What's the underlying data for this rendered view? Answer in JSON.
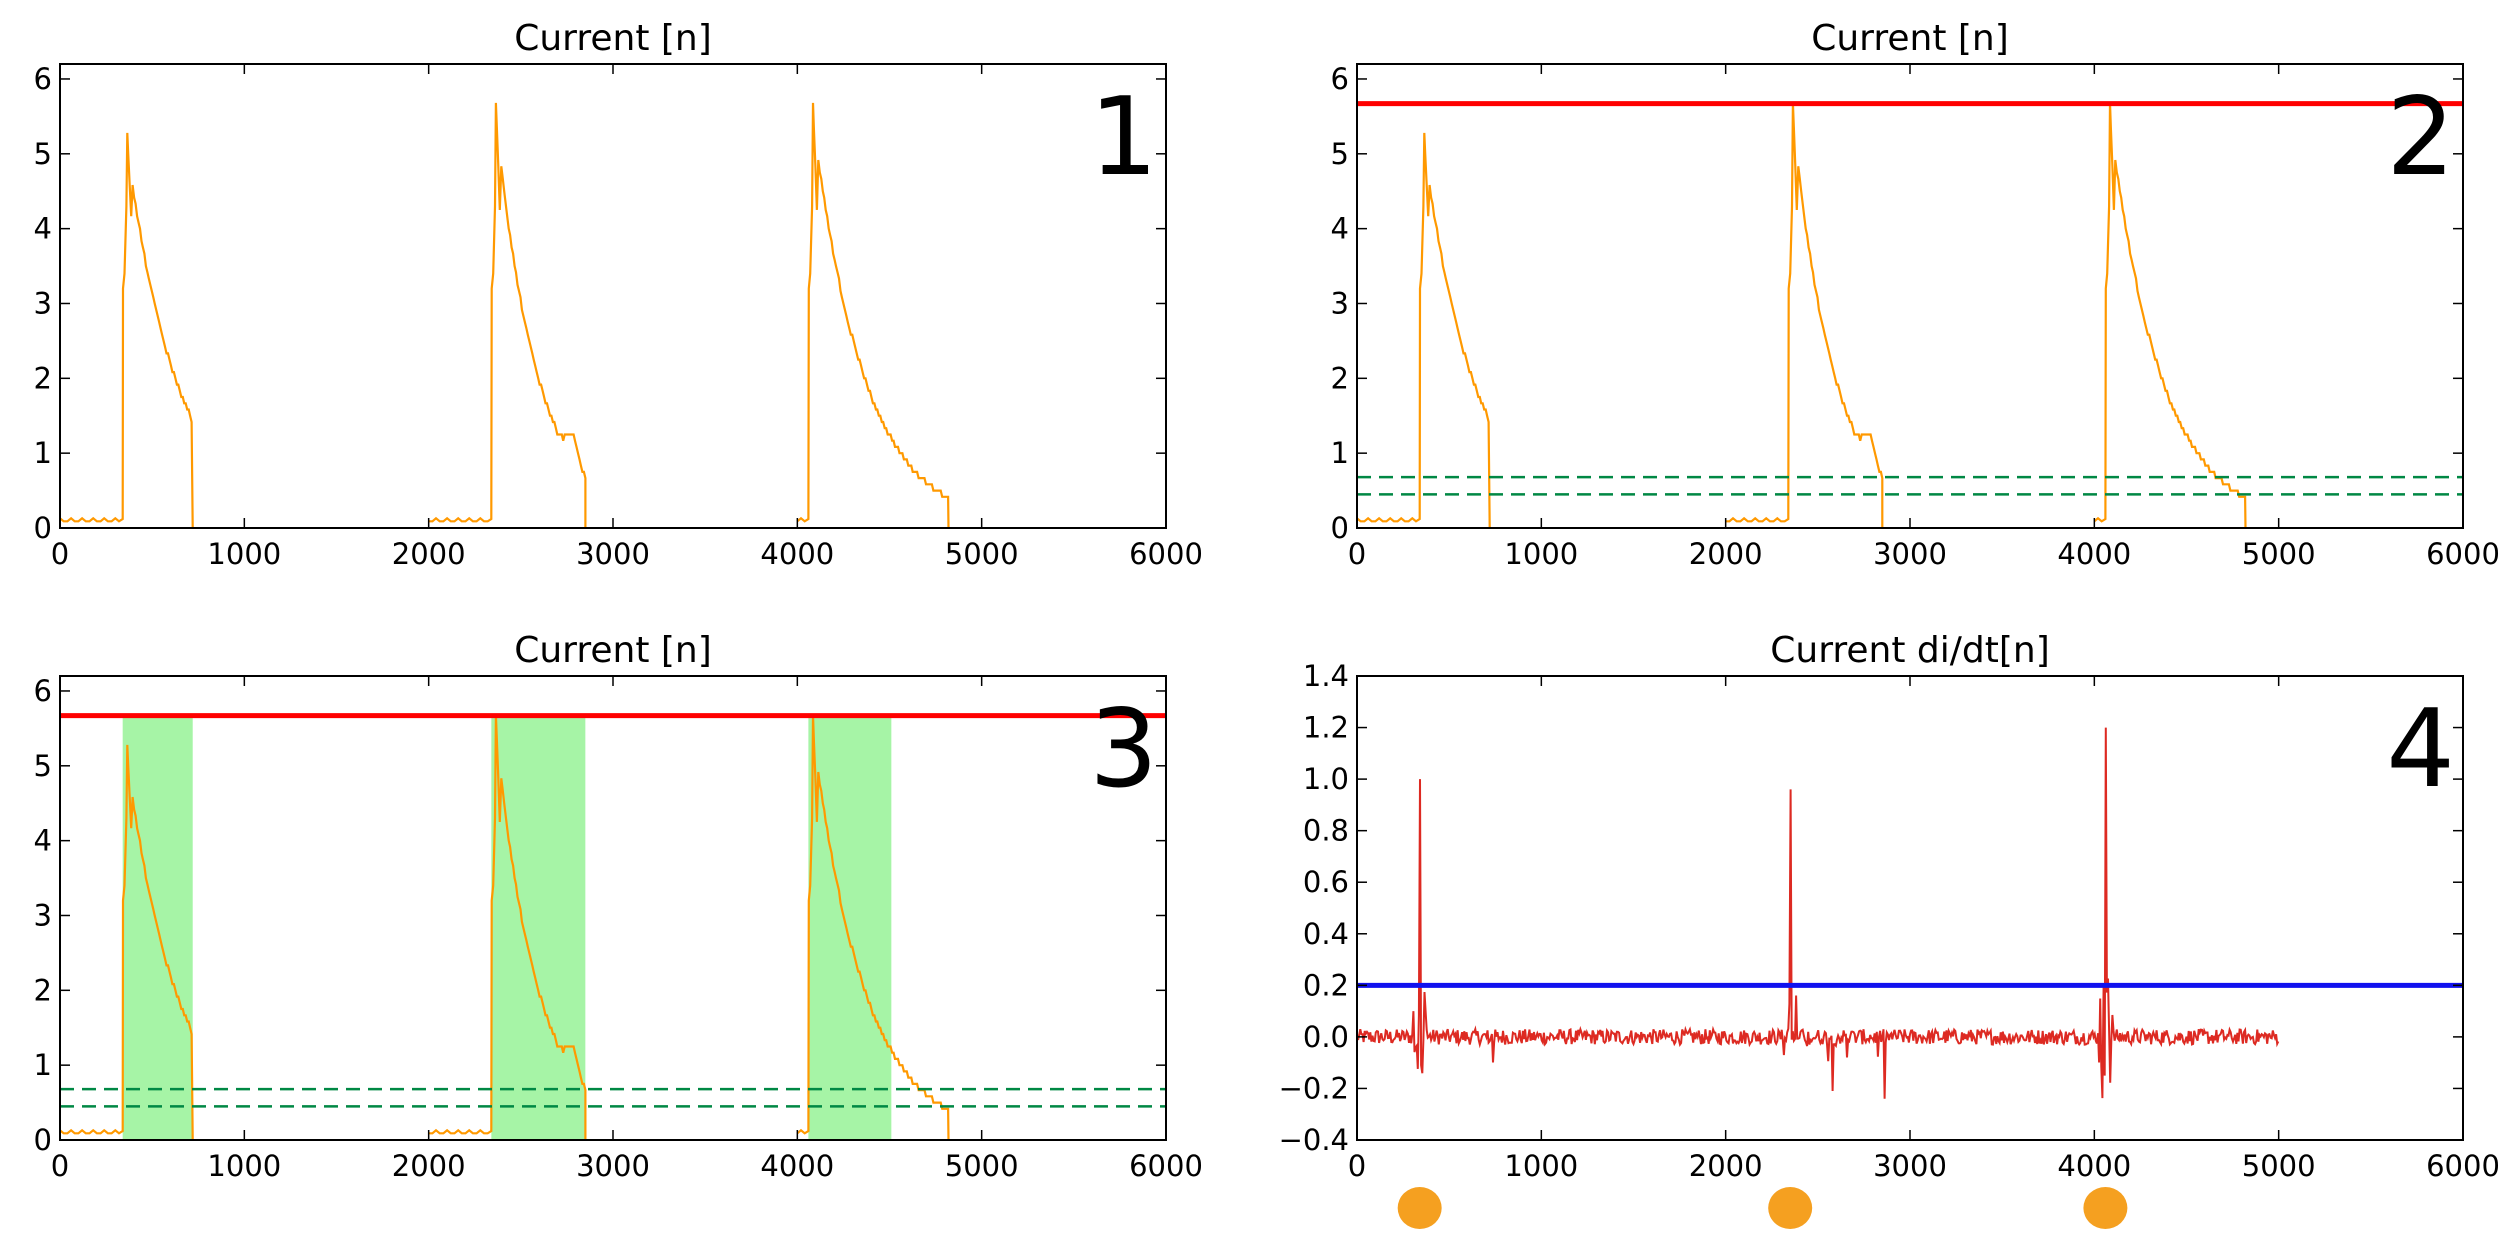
{
  "chart_data": [
    {
      "type": "line",
      "panel": "1",
      "title": "Current [n]",
      "xlim": [
        0,
        6000
      ],
      "ylim": [
        0,
        6.2
      ],
      "xticks": [
        "0",
        "1000",
        "2000",
        "3000",
        "4000",
        "5000",
        "6000"
      ],
      "yticks": [
        "0",
        "1",
        "2",
        "3",
        "4",
        "5",
        "6"
      ],
      "series": [
        {
          "name": "current",
          "color": "#ff9900"
        }
      ],
      "hlines": [],
      "dashed_hlines": [],
      "shaded_regions": []
    },
    {
      "type": "line",
      "panel": "2",
      "title": "Current [n]",
      "xlim": [
        0,
        6000
      ],
      "ylim": [
        0,
        6.2
      ],
      "xticks": [
        "0",
        "1000",
        "2000",
        "3000",
        "4000",
        "5000",
        "6000"
      ],
      "yticks": [
        "0",
        "1",
        "2",
        "3",
        "4",
        "5",
        "6"
      ],
      "series": [
        {
          "name": "current",
          "color": "#ff9900"
        }
      ],
      "hlines": [
        {
          "y": 5.67,
          "color": "#ff0000"
        }
      ],
      "dashed_hlines": [
        {
          "y": 0.68,
          "color": "#008844"
        },
        {
          "y": 0.45,
          "color": "#008844"
        }
      ],
      "shaded_regions": []
    },
    {
      "type": "line",
      "panel": "3",
      "title": "Current [n]",
      "xlim": [
        0,
        6000
      ],
      "ylim": [
        0,
        6.2
      ],
      "xticks": [
        "0",
        "1000",
        "2000",
        "3000",
        "4000",
        "5000",
        "6000"
      ],
      "yticks": [
        "0",
        "1",
        "2",
        "3",
        "4",
        "5",
        "6"
      ],
      "series": [
        {
          "name": "current",
          "color": "#ff9900"
        }
      ],
      "hlines": [
        {
          "y": 5.67,
          "color": "#ff0000"
        }
      ],
      "dashed_hlines": [
        {
          "y": 0.68,
          "color": "#008844"
        },
        {
          "y": 0.45,
          "color": "#008844"
        }
      ],
      "shaded_regions": [
        {
          "x0": 340,
          "x1": 720,
          "y1": 5.67,
          "color": "#77ee77"
        },
        {
          "x0": 2340,
          "x1": 2850,
          "y1": 5.67,
          "color": "#77ee77"
        },
        {
          "x0": 4060,
          "x1": 4510,
          "y1": 5.67,
          "color": "#77ee77"
        }
      ]
    },
    {
      "type": "line",
      "panel": "4",
      "title": "Current di/dt[n]",
      "xlim": [
        0,
        6000
      ],
      "ylim": [
        -0.4,
        1.4
      ],
      "xticks": [
        "0",
        "1000",
        "2000",
        "3000",
        "4000",
        "5000",
        "6000"
      ],
      "yticks": [
        "−0.4",
        "−0.2",
        "0.0",
        "0.2",
        "0.4",
        "0.6",
        "0.8",
        "1.0",
        "1.2",
        "1.4"
      ],
      "series": [
        {
          "name": "di/dt",
          "color": "#dd2a22"
        }
      ],
      "hlines": [
        {
          "y": 0.2,
          "color": "#1111ee"
        }
      ],
      "dashed_hlines": [],
      "shaded_regions": [],
      "event_markers": [
        {
          "x": 340,
          "color": "#f5a020"
        },
        {
          "x": 2350,
          "color": "#f5a020"
        },
        {
          "x": 4060,
          "color": "#f5a020"
        }
      ]
    }
  ],
  "signal": {
    "pulses": [
      {
        "x0": 0,
        "rise": 340,
        "peak": 5.28,
        "cut": 720,
        "tail_end": 720,
        "bump": null
      },
      {
        "x0": 2000,
        "rise": 2340,
        "peak": 5.68,
        "cut": 2850,
        "tail_end": 2850,
        "bump": {
          "x": 2780,
          "h": 0.35
        }
      },
      {
        "x0": 4000,
        "rise": 4060,
        "peak": 5.68,
        "cut": 4820,
        "tail_end": 4820,
        "bump": null
      }
    ],
    "derivative_spikes": [
      {
        "x": 340,
        "v": 1.0
      },
      {
        "x": 2350,
        "v": 0.96
      },
      {
        "x": 4060,
        "v": 1.2
      }
    ],
    "derivative_range": [
      0,
      5000
    ]
  }
}
